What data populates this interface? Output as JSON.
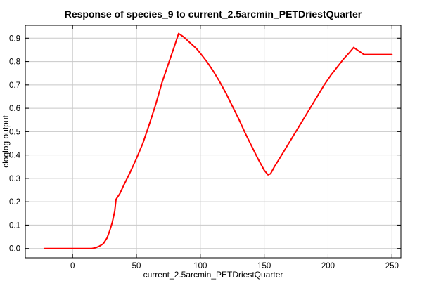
{
  "chart_data": {
    "type": "line",
    "title": "Response of species_9 to current_2.5arcmin_PETDriestQuarter",
    "xlabel": "current_2.5arcmin_PETDriestQuarter",
    "ylabel": "cloglog output",
    "xlim": [
      -37,
      257
    ],
    "ylim": [
      -0.04,
      0.955
    ],
    "xticks": [
      0,
      50,
      100,
      150,
      200,
      250
    ],
    "yticks": [
      0.0,
      0.1,
      0.2,
      0.3,
      0.4,
      0.5,
      0.6,
      0.7,
      0.8,
      0.9
    ],
    "grid": true,
    "series": [
      {
        "color": "#ff0000",
        "x": [
          -22,
          -10,
          0,
          10,
          15,
          18,
          21,
          24,
          27,
          29,
          31,
          33,
          34,
          37,
          40,
          45,
          50,
          55,
          60,
          65,
          70,
          75,
          80,
          83,
          87,
          92,
          97,
          100,
          105,
          110,
          115,
          120,
          125,
          130,
          135,
          140,
          145,
          150,
          153,
          155,
          158,
          162,
          167,
          172,
          177,
          182,
          187,
          192,
          197,
          202,
          207,
          212,
          217,
          220,
          224,
          228,
          235,
          242,
          250
        ],
        "y": [
          0.0,
          0.0,
          0.0,
          0.0,
          0.0,
          0.003,
          0.01,
          0.02,
          0.045,
          0.075,
          0.11,
          0.16,
          0.21,
          0.235,
          0.27,
          0.325,
          0.385,
          0.45,
          0.53,
          0.615,
          0.71,
          0.79,
          0.87,
          0.92,
          0.905,
          0.88,
          0.855,
          0.835,
          0.8,
          0.76,
          0.715,
          0.665,
          0.61,
          0.555,
          0.495,
          0.44,
          0.385,
          0.335,
          0.315,
          0.32,
          0.35,
          0.385,
          0.43,
          0.475,
          0.52,
          0.565,
          0.61,
          0.655,
          0.7,
          0.74,
          0.775,
          0.81,
          0.84,
          0.86,
          0.845,
          0.83,
          0.83,
          0.83,
          0.83
        ]
      }
    ]
  }
}
